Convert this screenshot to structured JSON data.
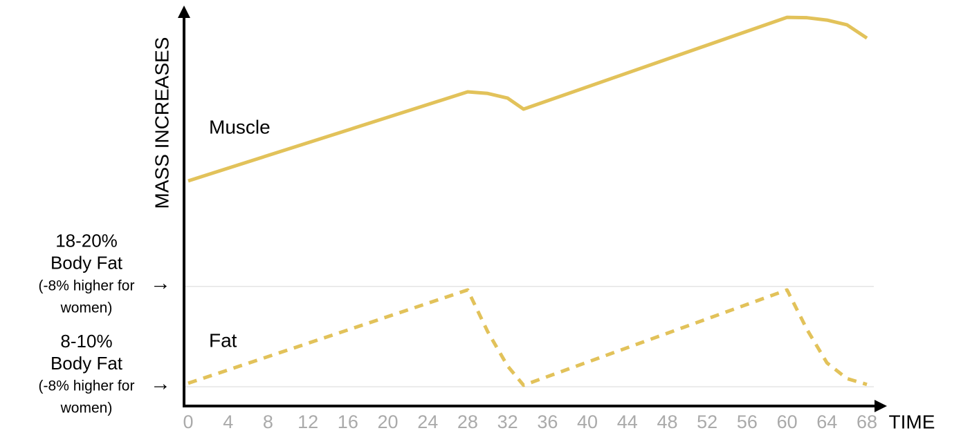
{
  "chart_data": {
    "type": "line",
    "xlabel": "TIME",
    "ylabel": "MASS INCREASES",
    "xlim": [
      0,
      68
    ],
    "xticks": [
      0,
      4,
      8,
      12,
      16,
      20,
      24,
      28,
      32,
      36,
      40,
      44,
      48,
      52,
      56,
      60,
      64,
      68
    ],
    "ylim": [
      0,
      100
    ],
    "yticks": [
      {
        "value": 30.5,
        "label": [
          "18-20%",
          "Body Fat",
          "(-8% higher for",
          "women)"
        ]
      },
      {
        "value": 4.9,
        "label": [
          "8-10%",
          "Body Fat",
          "(-8% higher for",
          "women)"
        ]
      }
    ],
    "grid": true,
    "series": [
      {
        "name": "Muscle",
        "color": "#e2c25a",
        "dashed": false,
        "x": [
          0,
          28,
          30,
          32,
          33.6,
          60,
          62,
          64,
          66,
          68
        ],
        "values": [
          57.4,
          80.1,
          79.7,
          78.5,
          75.7,
          99.1,
          99.0,
          98.4,
          97.2,
          93.8
        ]
      },
      {
        "name": "Fat",
        "color": "#e2c25a",
        "dashed": true,
        "x": [
          0,
          28,
          30,
          32,
          33.6,
          60,
          62,
          64,
          66,
          68
        ],
        "values": [
          5.8,
          29.6,
          19.0,
          10.2,
          5.3,
          29.6,
          19.5,
          11.0,
          7.0,
          5.5
        ]
      }
    ]
  }
}
